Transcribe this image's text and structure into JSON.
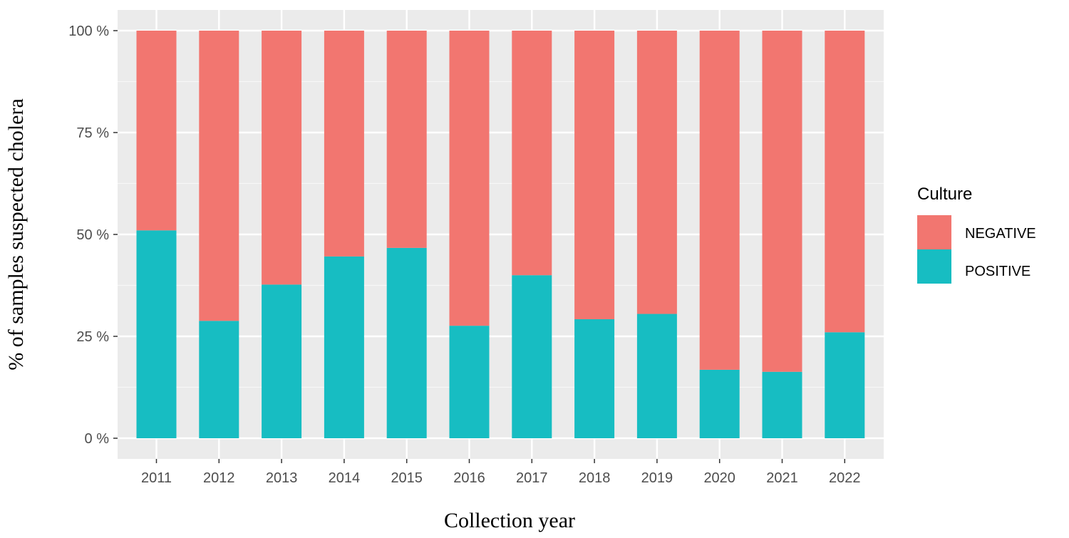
{
  "chart_data": {
    "type": "bar",
    "stacked": true,
    "xlabel": "Collection year",
    "ylabel": "% of samples suspected cholera",
    "categories": [
      "2011",
      "2012",
      "2013",
      "2014",
      "2015",
      "2016",
      "2017",
      "2018",
      "2019",
      "2020",
      "2021",
      "2022"
    ],
    "series": [
      {
        "name": "NEGATIVE",
        "color": "#f27670",
        "values": [
          49,
          71.2,
          62.3,
          55.4,
          53.3,
          72.4,
          60,
          70.8,
          69.5,
          83.2,
          83.7,
          74
        ]
      },
      {
        "name": "POSITIVE",
        "color": "#17bdc2",
        "values": [
          51,
          28.8,
          37.7,
          44.6,
          46.7,
          27.6,
          40,
          29.2,
          30.5,
          16.8,
          16.3,
          26
        ]
      }
    ],
    "ylim": [
      0,
      100
    ],
    "yticks": [
      0,
      25,
      50,
      75,
      100
    ],
    "ytick_labels": [
      "0 %",
      "25 %",
      "50 %",
      "75 %",
      "100 %"
    ],
    "grid": true,
    "panel_background": "#ebebeb",
    "legend": {
      "title": "Culture",
      "position": "right"
    }
  }
}
